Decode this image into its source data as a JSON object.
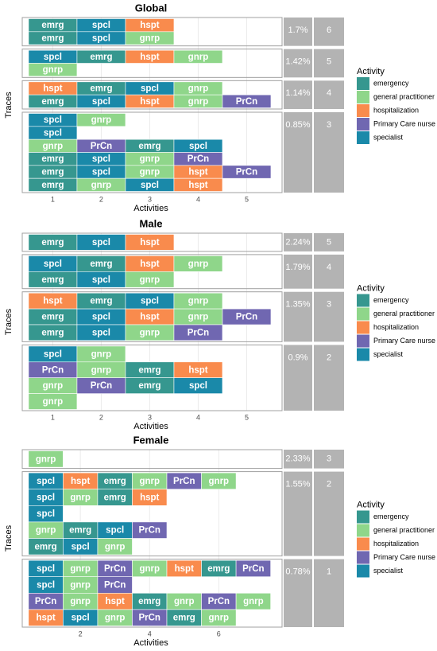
{
  "legend": {
    "title": "Activity",
    "items": [
      {
        "name": "emergency",
        "code": "emrg",
        "color": "#36978f"
      },
      {
        "name": "general practitioner",
        "code": "gnrp",
        "color": "#8fd68a"
      },
      {
        "name": "hospitalization",
        "code": "hspt",
        "color": "#f98b4d"
      },
      {
        "name": "Primary Care nurse",
        "code": "PrCn",
        "color": "#7067b1"
      },
      {
        "name": "specialist",
        "code": "spcl",
        "color": "#1a89a9"
      }
    ]
  },
  "panels": [
    {
      "title": "Global",
      "x_label": "Activities",
      "y_label": "Traces",
      "xlim": [
        0.37,
        5.73
      ],
      "xticks": [
        1,
        2,
        3,
        4,
        5
      ],
      "groups": [
        {
          "share": "1.7%",
          "count": "6",
          "traces": [
            [
              "emrg",
              "spcl",
              "hspt"
            ],
            [
              "emrg",
              "spcl",
              "gnrp"
            ]
          ]
        },
        {
          "share": "1.42%",
          "count": "5",
          "traces": [
            [
              "spcl",
              "emrg",
              "hspt",
              "gnrp"
            ],
            [
              "gnrp"
            ]
          ]
        },
        {
          "share": "1.14%",
          "count": "4",
          "traces": [
            [
              "hspt",
              "emrg",
              "spcl",
              "gnrp"
            ],
            [
              "emrg",
              "spcl",
              "hspt",
              "gnrp",
              "PrCn"
            ]
          ]
        },
        {
          "share": "0.85%",
          "count": "3",
          "traces": [
            [
              "spcl",
              "gnrp"
            ],
            [
              "spcl"
            ],
            [
              "gnrp",
              "PrCn",
              "emrg",
              "spcl"
            ],
            [
              "emrg",
              "spcl",
              "gnrp",
              "PrCn"
            ],
            [
              "emrg",
              "spcl",
              "gnrp",
              "hspt",
              "PrCn"
            ],
            [
              "emrg",
              "gnrp",
              "spcl",
              "hspt"
            ]
          ]
        }
      ]
    },
    {
      "title": "Male",
      "x_label": "Activities",
      "y_label": "Traces",
      "xlim": [
        0.37,
        5.73
      ],
      "xticks": [
        1,
        2,
        3,
        4,
        5
      ],
      "groups": [
        {
          "share": "2.24%",
          "count": "5",
          "traces": [
            [
              "emrg",
              "spcl",
              "hspt"
            ]
          ]
        },
        {
          "share": "1.79%",
          "count": "4",
          "traces": [
            [
              "spcl",
              "emrg",
              "hspt",
              "gnrp"
            ],
            [
              "emrg",
              "spcl",
              "gnrp"
            ]
          ]
        },
        {
          "share": "1.35%",
          "count": "3",
          "traces": [
            [
              "hspt",
              "emrg",
              "spcl",
              "gnrp"
            ],
            [
              "emrg",
              "spcl",
              "hspt",
              "gnrp",
              "PrCn"
            ],
            [
              "emrg",
              "spcl",
              "gnrp",
              "PrCn"
            ]
          ]
        },
        {
          "share": "0.9%",
          "count": "2",
          "traces": [
            [
              "spcl",
              "gnrp"
            ],
            [
              "PrCn",
              "gnrp",
              "emrg",
              "hspt"
            ],
            [
              "gnrp",
              "PrCn",
              "emrg",
              "spcl"
            ],
            [
              "gnrp"
            ]
          ]
        }
      ]
    },
    {
      "title": "Female",
      "x_label": "Activities",
      "y_label": "Traces",
      "xlim": [
        0.32,
        7.83
      ],
      "xticks": [
        2,
        4,
        6
      ],
      "groups": [
        {
          "share": "2.33%",
          "count": "3",
          "traces": [
            [
              "gnrp"
            ]
          ]
        },
        {
          "share": "1.55%",
          "count": "2",
          "traces": [
            [
              "spcl",
              "hspt",
              "emrg",
              "gnrp",
              "PrCn",
              "gnrp"
            ],
            [
              "spcl",
              "gnrp",
              "emrg",
              "hspt"
            ],
            [
              "spcl"
            ],
            [
              "gnrp",
              "emrg",
              "spcl",
              "PrCn"
            ],
            [
              "emrg",
              "spcl",
              "gnrp"
            ]
          ]
        },
        {
          "share": "0.78%",
          "count": "1",
          "traces": [
            [
              "spcl",
              "gnrp",
              "PrCn",
              "gnrp",
              "hspt",
              "emrg",
              "PrCn"
            ],
            [
              "spcl",
              "gnrp",
              "PrCn"
            ],
            [
              "PrCn",
              "gnrp",
              "hspt",
              "emrg",
              "gnrp",
              "PrCn",
              "gnrp"
            ],
            [
              "hspt",
              "spcl",
              "gnrp",
              "PrCn",
              "emrg",
              "gnrp"
            ]
          ]
        }
      ]
    }
  ]
}
